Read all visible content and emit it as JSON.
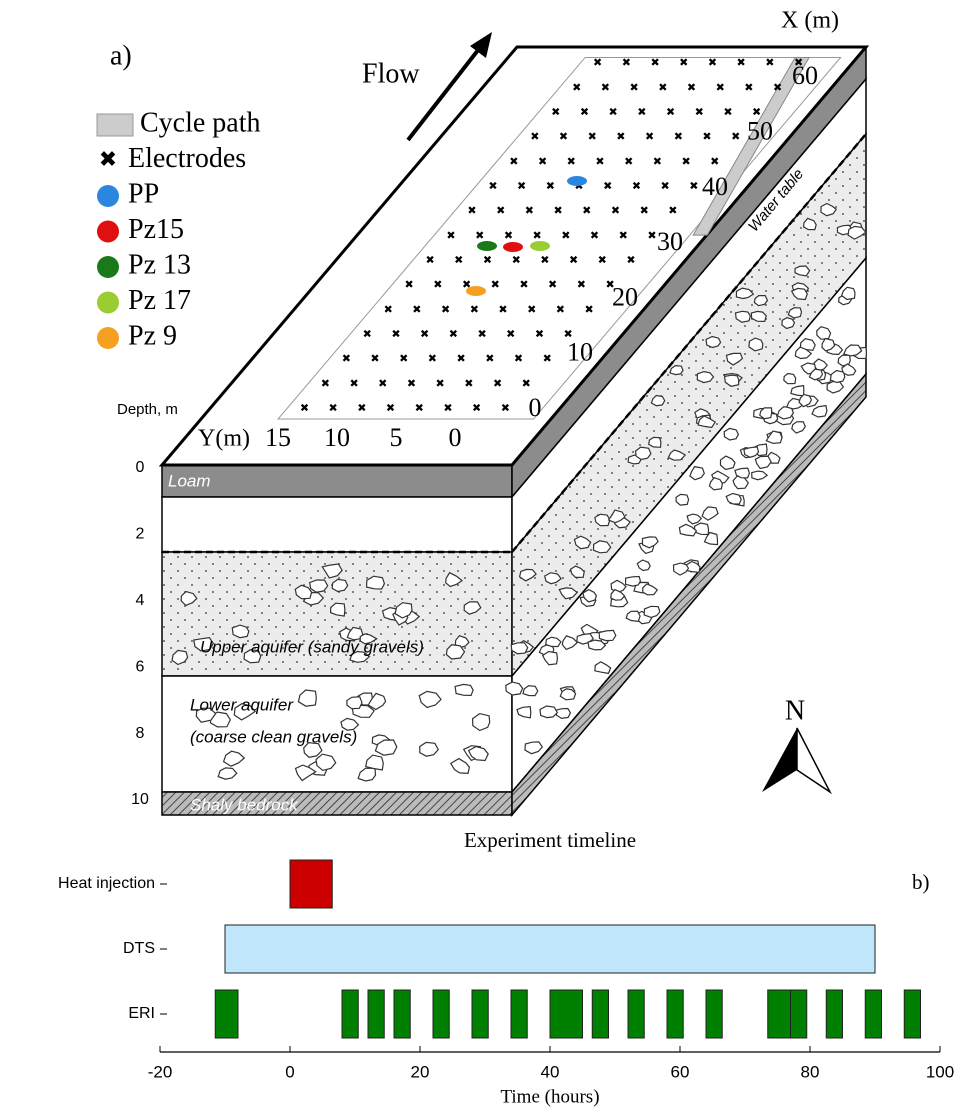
{
  "diagram": {
    "panel_label": "a)",
    "flow": "Flow",
    "legend": [
      {
        "name": "Cycle path",
        "color": "#cccccc"
      },
      {
        "name": "Electrodes",
        "color": "#000000"
      },
      {
        "name": "PP",
        "color": "#2b86e0"
      },
      {
        "name": "Pz15",
        "color": "#e01010"
      },
      {
        "name": "Pz 13",
        "color": "#1a7a1a"
      },
      {
        "name": "Pz 17",
        "color": "#9acd32"
      },
      {
        "name": "Pz 9",
        "color": "#f5a020"
      }
    ],
    "x_axis": {
      "label": "X (m)",
      "ticks": [
        0,
        10,
        20,
        30,
        40,
        50,
        60
      ]
    },
    "y_axis": {
      "label": "Y(m)",
      "ticks": [
        15,
        10,
        5,
        0
      ]
    },
    "depth_axis": {
      "label": "Depth, m",
      "ticks": [
        0,
        2,
        4,
        6,
        8,
        10
      ]
    },
    "layers": [
      "Loam",
      "Upper aquifer (sandy gravels)",
      "Lower aquifer",
      "(coarse clean gravels)",
      "Shaly bedrock"
    ],
    "water_table": "Water table",
    "north": "N"
  },
  "chart_data": {
    "type": "timeline",
    "title": "Experiment timeline",
    "panel_label": "b)",
    "xlabel": "Time (hours)",
    "xlim": [
      -20,
      100
    ],
    "xticks": [
      -20,
      0,
      20,
      40,
      60,
      80,
      100
    ],
    "series": [
      {
        "name": "Heat injection",
        "color": "#cc0000",
        "intervals": [
          [
            0,
            6.5
          ]
        ]
      },
      {
        "name": "DTS",
        "color": "#bfe6fb",
        "intervals": [
          [
            -10,
            90
          ]
        ]
      },
      {
        "name": "ERI",
        "color": "#008000",
        "intervals": [
          [
            -11.5,
            -8
          ],
          [
            8,
            10.5
          ],
          [
            12,
            14.5
          ],
          [
            16,
            18.5
          ],
          [
            22,
            24.5
          ],
          [
            28,
            30.5
          ],
          [
            34,
            36.5
          ],
          [
            40,
            45
          ],
          [
            46.5,
            49
          ],
          [
            52,
            54.5
          ],
          [
            58,
            60.5
          ],
          [
            64,
            66.5
          ],
          [
            73.5,
            77
          ],
          [
            77,
            79.5
          ],
          [
            82.5,
            85
          ],
          [
            88.5,
            91
          ],
          [
            94.5,
            97
          ]
        ]
      }
    ]
  }
}
